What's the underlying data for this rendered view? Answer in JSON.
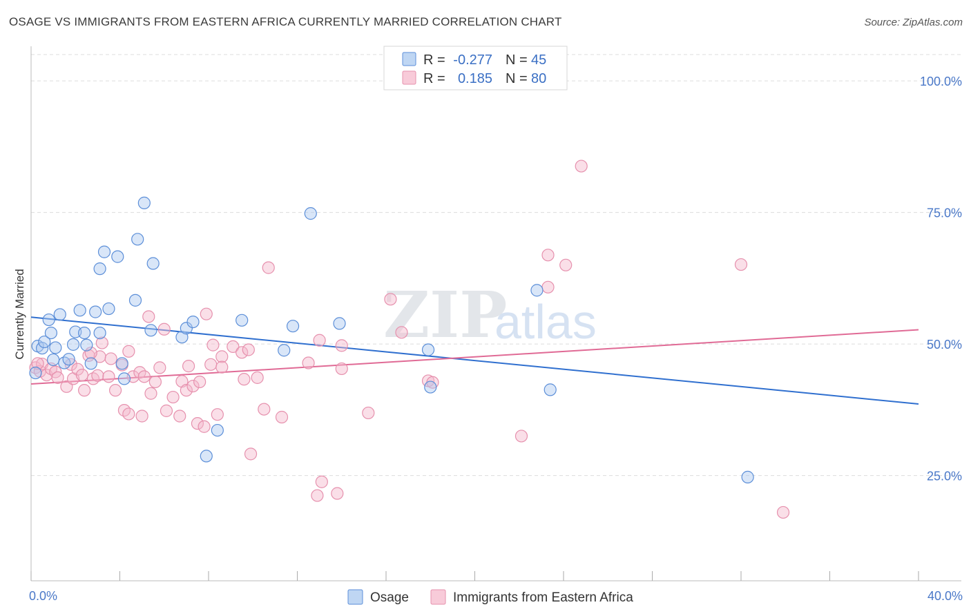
{
  "title": "OSAGE VS IMMIGRANTS FROM EASTERN AFRICA CURRENTLY MARRIED CORRELATION CHART",
  "source": "Source: ZipAtlas.com",
  "watermark": {
    "part1": "ZIP",
    "part2": "atlas"
  },
  "colors": {
    "osage_fill": "#aac8ef",
    "osage_stroke": "#5b8ed8",
    "osage_line": "#2f6fcf",
    "imm_fill": "#f5b9cc",
    "imm_stroke": "#e690ad",
    "imm_line": "#e06a95",
    "grid": "#dcdcdc",
    "tick_text": "#4a78c8"
  },
  "legend": {
    "rows": [
      {
        "series": "Osage",
        "r_label": "R =",
        "r_value": "-0.277",
        "n_label": "N =",
        "n_value": "45"
      },
      {
        "series": "Immigrants from Eastern Africa",
        "r_label": "R =",
        "r_value": "0.185",
        "n_label": "N =",
        "n_value": "80"
      }
    ]
  },
  "chart_data": {
    "type": "scatter",
    "xlabel": "",
    "ylabel": "Currently Married",
    "xlim": [
      0,
      40
    ],
    "ylim": [
      5,
      105
    ],
    "x_tick_labels": [
      {
        "value": 0,
        "label": "0.0%"
      },
      {
        "value": 40,
        "label": "40.0%"
      }
    ],
    "y_tick_labels": [
      {
        "value": 100,
        "label": "100.0%"
      },
      {
        "value": 75,
        "label": "75.0%"
      },
      {
        "value": 50,
        "label": "50.0%"
      },
      {
        "value": 25,
        "label": "25.0%"
      }
    ],
    "x_minor_ticks": [
      0,
      4,
      8,
      12,
      16,
      20,
      24,
      28,
      32,
      36,
      40
    ],
    "grid": true,
    "series": [
      {
        "name": "Osage",
        "trend": {
          "x": [
            0,
            40
          ],
          "y": [
            55.1,
            38.6
          ]
        },
        "points": [
          [
            0.3,
            49.6
          ],
          [
            0.5,
            49.2
          ],
          [
            0.6,
            50.4
          ],
          [
            0.8,
            54.6
          ],
          [
            0.9,
            52.1
          ],
          [
            1.1,
            49.3
          ],
          [
            1.3,
            55.6
          ],
          [
            1.5,
            46.4
          ],
          [
            1.7,
            47.1
          ],
          [
            1.9,
            49.9
          ],
          [
            2.0,
            52.3
          ],
          [
            2.2,
            56.4
          ],
          [
            2.4,
            52.1
          ],
          [
            2.5,
            49.8
          ],
          [
            2.7,
            46.3
          ],
          [
            2.9,
            56.1
          ],
          [
            3.1,
            64.3
          ],
          [
            3.1,
            52.1
          ],
          [
            3.3,
            67.5
          ],
          [
            3.5,
            56.7
          ],
          [
            3.9,
            66.6
          ],
          [
            4.1,
            46.3
          ],
          [
            4.2,
            43.4
          ],
          [
            4.7,
            58.3
          ],
          [
            4.8,
            69.9
          ],
          [
            5.1,
            76.8
          ],
          [
            5.4,
            52.6
          ],
          [
            5.5,
            65.3
          ],
          [
            6.8,
            51.3
          ],
          [
            7.0,
            53.0
          ],
          [
            7.3,
            54.2
          ],
          [
            7.9,
            28.7
          ],
          [
            8.4,
            33.6
          ],
          [
            9.5,
            54.5
          ],
          [
            11.4,
            48.8
          ],
          [
            11.8,
            53.4
          ],
          [
            12.6,
            74.8
          ],
          [
            13.9,
            53.9
          ],
          [
            17.9,
            48.9
          ],
          [
            18.0,
            41.8
          ],
          [
            22.8,
            60.2
          ],
          [
            23.4,
            41.3
          ],
          [
            32.3,
            24.7
          ],
          [
            0.2,
            44.5
          ],
          [
            1.0,
            47.0
          ]
        ]
      },
      {
        "name": "Immigrants from Eastern Africa",
        "trend": {
          "x": [
            0,
            40
          ],
          "y": [
            42.4,
            52.7
          ]
        },
        "points": [
          [
            0.2,
            45.5
          ],
          [
            0.4,
            44.8
          ],
          [
            0.5,
            46.2
          ],
          [
            0.7,
            44.1
          ],
          [
            0.9,
            45.3
          ],
          [
            1.1,
            44.7
          ],
          [
            1.2,
            43.6
          ],
          [
            1.6,
            41.9
          ],
          [
            1.8,
            46.1
          ],
          [
            1.9,
            43.4
          ],
          [
            2.1,
            45.2
          ],
          [
            2.3,
            44.1
          ],
          [
            2.4,
            41.2
          ],
          [
            2.6,
            47.8
          ],
          [
            2.8,
            43.4
          ],
          [
            3.0,
            44.0
          ],
          [
            3.1,
            47.6
          ],
          [
            3.2,
            50.2
          ],
          [
            3.5,
            43.8
          ],
          [
            3.6,
            47.2
          ],
          [
            3.8,
            41.2
          ],
          [
            4.1,
            46.0
          ],
          [
            4.2,
            37.4
          ],
          [
            4.4,
            48.6
          ],
          [
            4.4,
            36.7
          ],
          [
            4.6,
            43.8
          ],
          [
            4.9,
            44.6
          ],
          [
            5.0,
            36.3
          ],
          [
            5.1,
            43.8
          ],
          [
            5.3,
            55.2
          ],
          [
            5.4,
            40.6
          ],
          [
            5.6,
            42.8
          ],
          [
            5.8,
            45.5
          ],
          [
            6.0,
            52.8
          ],
          [
            6.1,
            37.3
          ],
          [
            6.4,
            39.9
          ],
          [
            6.7,
            36.3
          ],
          [
            6.8,
            42.9
          ],
          [
            7.0,
            41.2
          ],
          [
            7.1,
            45.8
          ],
          [
            7.3,
            42.0
          ],
          [
            7.5,
            34.9
          ],
          [
            7.6,
            42.8
          ],
          [
            7.8,
            34.3
          ],
          [
            7.9,
            55.7
          ],
          [
            8.1,
            46.1
          ],
          [
            8.2,
            49.8
          ],
          [
            8.4,
            36.6
          ],
          [
            8.6,
            47.6
          ],
          [
            8.6,
            45.6
          ],
          [
            9.1,
            49.5
          ],
          [
            9.5,
            48.4
          ],
          [
            9.6,
            43.3
          ],
          [
            9.8,
            48.9
          ],
          [
            10.2,
            43.6
          ],
          [
            10.5,
            37.6
          ],
          [
            10.7,
            64.5
          ],
          [
            11.3,
            36.1
          ],
          [
            12.5,
            46.4
          ],
          [
            13.0,
            50.7
          ],
          [
            12.9,
            21.2
          ],
          [
            13.1,
            23.8
          ],
          [
            13.8,
            21.6
          ],
          [
            14.0,
            49.7
          ],
          [
            14.0,
            45.3
          ],
          [
            15.2,
            36.9
          ],
          [
            16.2,
            58.5
          ],
          [
            16.7,
            52.2
          ],
          [
            17.9,
            43.0
          ],
          [
            18.1,
            42.7
          ],
          [
            22.1,
            32.5
          ],
          [
            23.3,
            66.9
          ],
          [
            23.3,
            60.8
          ],
          [
            24.1,
            65.0
          ],
          [
            24.8,
            83.8
          ],
          [
            32.0,
            65.1
          ],
          [
            33.9,
            18.0
          ],
          [
            9.9,
            29.1
          ],
          [
            0.3,
            46.3
          ],
          [
            2.7,
            48.3
          ]
        ]
      }
    ]
  }
}
